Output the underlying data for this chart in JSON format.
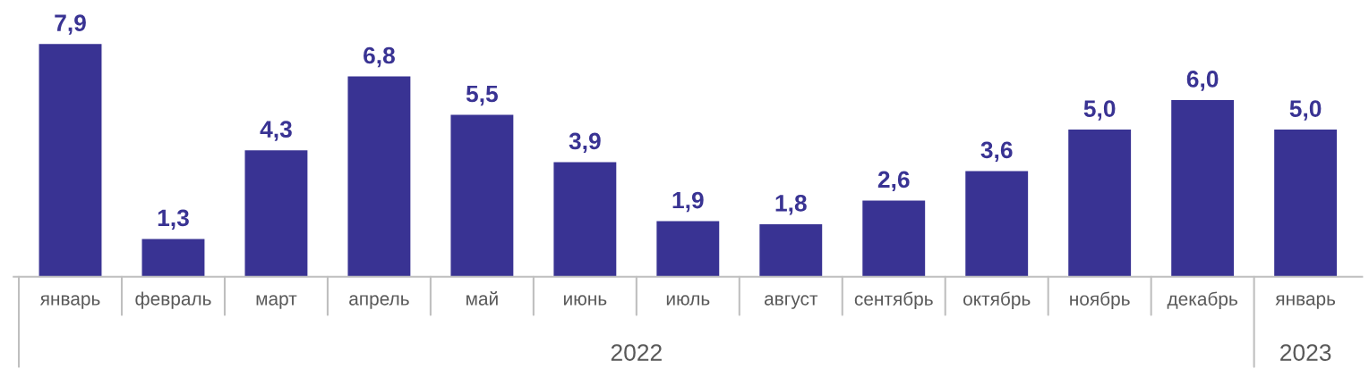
{
  "chart_data": {
    "type": "bar",
    "categories": [
      "январь",
      "февраль",
      "март",
      "апрель",
      "май",
      "июнь",
      "июль",
      "август",
      "сентябрь",
      "октябрь",
      "ноябрь",
      "декабрь",
      "январь"
    ],
    "values": [
      7.9,
      1.3,
      4.3,
      6.8,
      5.5,
      3.9,
      1.9,
      1.8,
      2.6,
      3.6,
      5.0,
      6.0,
      5.0
    ],
    "value_labels": [
      "7,9",
      "1,3",
      "4,3",
      "6,8",
      "5,5",
      "3,9",
      "1,9",
      "1,8",
      "2,6",
      "3,6",
      "5,0",
      "6,0",
      "5,0"
    ],
    "color": "#393393",
    "annotations": [
      "2022",
      "2023"
    ]
  }
}
